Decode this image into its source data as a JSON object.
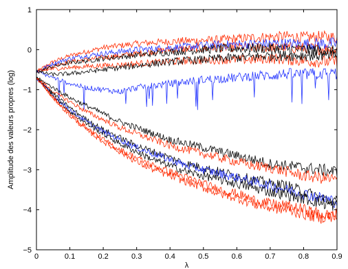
{
  "chart_data": {
    "type": "line",
    "title": "",
    "xlabel": "λ",
    "ylabel": "Amplitude des valeurs propres (log)",
    "xlim": [
      0,
      0.9
    ],
    "ylim": [
      -5,
      1
    ],
    "grid": false,
    "legend": "none",
    "x_ticks": [
      0,
      0.1,
      0.2,
      0.3,
      0.4,
      0.5,
      0.6,
      0.7,
      0.8,
      0.9
    ],
    "x_tick_labels": [
      "0",
      "0.1",
      "0.2",
      "0.3",
      "0.4",
      "0.5",
      "0.6",
      "0.7",
      "0.8",
      "0.9"
    ],
    "y_ticks": [
      -5,
      -4,
      -3,
      -2,
      -1,
      0,
      1
    ],
    "y_tick_labels": [
      "−5",
      "−4",
      "−3",
      "−2",
      "−1",
      "0",
      "1"
    ],
    "x": [
      0,
      0.05,
      0.1,
      0.15,
      0.2,
      0.25,
      0.3,
      0.35,
      0.4,
      0.45,
      0.5,
      0.55,
      0.6,
      0.65,
      0.7,
      0.75,
      0.8,
      0.85,
      0.9
    ],
    "series": [
      {
        "color": "#ff2a00",
        "values": [
          -0.55,
          -0.3,
          -0.15,
          -0.05,
          0.05,
          0.1,
          0.15,
          0.18,
          0.2,
          0.22,
          0.23,
          0.25,
          0.27,
          0.3,
          0.32,
          0.33,
          0.3,
          0.32,
          0.3
        ]
      },
      {
        "color": "#ff2a00",
        "values": [
          -0.55,
          -0.4,
          -0.3,
          -0.25,
          -0.2,
          -0.15,
          -0.1,
          -0.05,
          0.0,
          0.02,
          0.03,
          0.05,
          0.06,
          0.05,
          0.05,
          0.05,
          0.04,
          0.02,
          0.0
        ]
      },
      {
        "color": "#2233ff",
        "values": [
          -0.55,
          -0.35,
          -0.22,
          -0.15,
          -0.1,
          -0.05,
          0.0,
          0.02,
          0.05,
          0.07,
          0.1,
          0.12,
          0.13,
          0.14,
          0.15,
          0.15,
          0.14,
          0.15,
          0.15
        ]
      },
      {
        "color": "#000000",
        "values": [
          -0.55,
          -0.42,
          -0.33,
          -0.28,
          -0.22,
          -0.18,
          -0.14,
          -0.1,
          -0.06,
          -0.03,
          0.0,
          0.02,
          0.03,
          0.03,
          0.04,
          0.02,
          0.0,
          -0.02,
          -0.05
        ]
      },
      {
        "color": "#ff2a00",
        "values": [
          -0.55,
          -0.48,
          -0.45,
          -0.42,
          -0.4,
          -0.38,
          -0.35,
          -0.33,
          -0.3,
          -0.28,
          -0.27,
          -0.25,
          -0.25,
          -0.25,
          -0.22,
          -0.25,
          -0.28,
          -0.3,
          -0.3
        ]
      },
      {
        "color": "#2233ff",
        "values": [
          -0.55,
          -0.7,
          -0.85,
          -0.95,
          -1.0,
          -1.05,
          -0.95,
          -0.9,
          -0.85,
          -0.8,
          -0.75,
          -0.72,
          -0.7,
          -0.65,
          -0.65,
          -0.6,
          -0.62,
          -0.6,
          -0.6
        ]
      },
      {
        "color": "#000000",
        "values": [
          -0.55,
          -0.62,
          -0.6,
          -0.55,
          -0.5,
          -0.45,
          -0.4,
          -0.35,
          -0.3,
          -0.27,
          -0.25,
          -0.22,
          -0.2,
          -0.18,
          -0.15,
          -0.15,
          -0.14,
          -0.14,
          -0.15
        ]
      },
      {
        "color": "#000000",
        "values": [
          -0.7,
          -0.95,
          -1.2,
          -1.4,
          -1.6,
          -1.8,
          -1.95,
          -2.1,
          -2.25,
          -2.35,
          -2.45,
          -2.55,
          -2.65,
          -2.75,
          -2.85,
          -2.9,
          -2.95,
          -3.0,
          -3.05
        ]
      },
      {
        "color": "#ff2a00",
        "values": [
          -0.7,
          -1.05,
          -1.3,
          -1.55,
          -1.75,
          -1.95,
          -2.1,
          -2.25,
          -2.4,
          -2.5,
          -2.6,
          -2.7,
          -2.8,
          -2.9,
          -2.95,
          -3.05,
          -3.15,
          -3.2,
          -3.25
        ]
      },
      {
        "color": "#000000",
        "values": [
          -0.7,
          -1.1,
          -1.45,
          -1.75,
          -2.0,
          -2.2,
          -2.4,
          -2.55,
          -2.7,
          -2.85,
          -2.95,
          -3.05,
          -3.15,
          -3.25,
          -3.35,
          -3.4,
          -3.55,
          -3.7,
          -3.8
        ]
      },
      {
        "color": "#2233ff",
        "values": [
          -0.7,
          -1.15,
          -1.5,
          -1.8,
          -2.05,
          -2.25,
          -2.45,
          -2.6,
          -2.75,
          -2.9,
          -3.0,
          -3.1,
          -3.2,
          -3.3,
          -3.4,
          -3.5,
          -3.6,
          -3.7,
          -3.8
        ]
      },
      {
        "color": "#000000",
        "values": [
          -0.7,
          -1.15,
          -1.55,
          -1.85,
          -2.1,
          -2.35,
          -2.55,
          -2.75,
          -2.9,
          -3.05,
          -3.15,
          -3.25,
          -3.35,
          -3.45,
          -3.55,
          -3.62,
          -3.72,
          -3.82,
          -3.9
        ]
      },
      {
        "color": "#ff2a00",
        "values": [
          -0.7,
          -1.2,
          -1.65,
          -2.0,
          -2.3,
          -2.55,
          -2.8,
          -3.0,
          -3.15,
          -3.3,
          -3.45,
          -3.6,
          -3.7,
          -3.85,
          -3.95,
          -4.0,
          -4.1,
          -4.2,
          -4.1
        ]
      },
      {
        "color": "#ff2a00",
        "values": [
          -0.7,
          -1.2,
          -1.6,
          -1.95,
          -2.25,
          -2.5,
          -2.7,
          -2.9,
          -3.05,
          -3.2,
          -3.35,
          -3.5,
          -3.6,
          -3.75,
          -3.85,
          -3.9,
          -4.0,
          -4.1,
          -4.2
        ]
      }
    ]
  }
}
